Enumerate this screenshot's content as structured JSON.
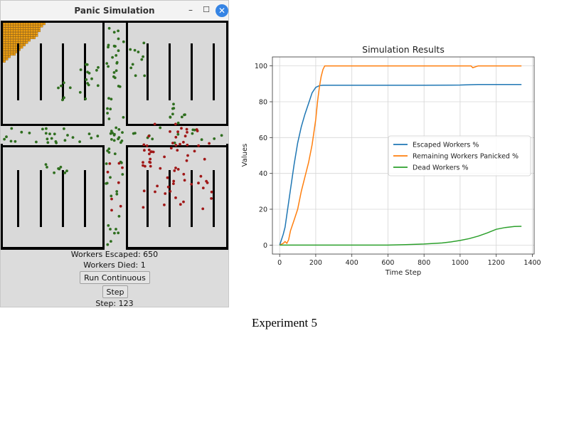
{
  "window": {
    "title": "Panic Simulation",
    "controls": {
      "minimize": "–",
      "maximize": "☐",
      "close": "✕"
    },
    "colors": {
      "wall": "#000000",
      "floor": "#d9d9d9",
      "fire": "#f0a010",
      "calm_worker": "#2f6e1f",
      "panicked_worker": "#a01818"
    }
  },
  "status": {
    "escaped_label": "Workers Escaped: 650",
    "died_label": "Workers Died: 1",
    "step_label": "Step: 123"
  },
  "buttons": {
    "run_continuous": "Run Continuous",
    "step": "Step"
  },
  "caption": "Experiment 5",
  "chart_data": {
    "type": "line",
    "title": "Simulation Results",
    "xlabel": "Time Step",
    "ylabel": "Values",
    "xlim": [
      -40,
      1410
    ],
    "ylim": [
      -5,
      105
    ],
    "xticks": [
      0,
      200,
      400,
      600,
      800,
      1000,
      1200,
      1400
    ],
    "yticks": [
      0,
      20,
      40,
      60,
      80,
      100
    ],
    "grid": true,
    "legend_position": "center-right",
    "series": [
      {
        "name": "Escaped Workers %",
        "color": "#1f77b4",
        "x": [
          0,
          10,
          20,
          30,
          40,
          60,
          80,
          100,
          120,
          140,
          160,
          180,
          200,
          220,
          240,
          260,
          400,
          600,
          800,
          1000,
          1060,
          1100,
          1200,
          1340
        ],
        "y": [
          0,
          3,
          6,
          10,
          17,
          31,
          45,
          57,
          66,
          73,
          79,
          85,
          88,
          89,
          89.2,
          89.2,
          89.2,
          89.2,
          89.2,
          89.3,
          89.5,
          89.6,
          89.6,
          89.6
        ]
      },
      {
        "name": "Remaining Workers Panicked %",
        "color": "#ff7f0e",
        "x": [
          0,
          20,
          30,
          40,
          50,
          60,
          80,
          100,
          120,
          140,
          160,
          180,
          200,
          210,
          220,
          230,
          240,
          250,
          260,
          400,
          600,
          800,
          1000,
          1060,
          1070,
          1100,
          1340
        ],
        "y": [
          0,
          1,
          2,
          1,
          3,
          8,
          14,
          20,
          30,
          38,
          46,
          56,
          70,
          80,
          88,
          94,
          98,
          100,
          100,
          100,
          100,
          100,
          100,
          100,
          99,
          100,
          100
        ]
      },
      {
        "name": "Dead Workers %",
        "color": "#2ca02c",
        "x": [
          0,
          200,
          400,
          600,
          700,
          800,
          900,
          950,
          1000,
          1050,
          1100,
          1150,
          1200,
          1250,
          1300,
          1340
        ],
        "y": [
          0,
          0,
          0,
          0,
          0.3,
          0.6,
          1.2,
          1.8,
          2.6,
          3.6,
          5.0,
          6.8,
          8.8,
          9.8,
          10.4,
          10.5
        ]
      }
    ]
  }
}
